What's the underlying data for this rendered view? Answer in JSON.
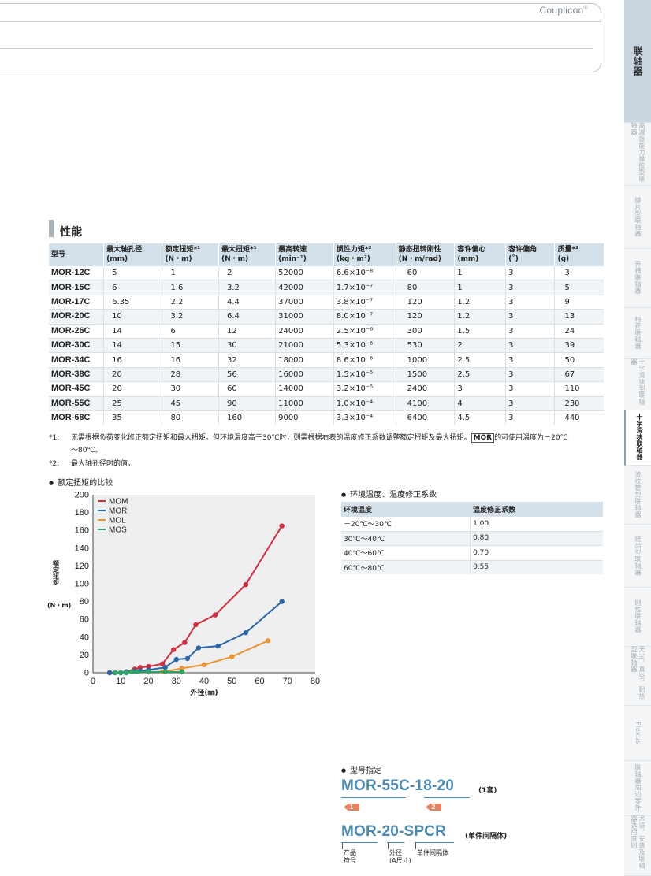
{
  "header": {
    "brand": "Couplicon",
    "brand_mark": "®"
  },
  "side_tabs": [
    {
      "label": "联轴器",
      "main": true
    },
    {
      "label": "高减振能力橡胶型联轴器"
    },
    {
      "label": "膜片型联轴器"
    },
    {
      "label": "开槽联轴器"
    },
    {
      "label": "梅花联轴器"
    },
    {
      "label": "十字滑块型联轴器"
    },
    {
      "label": "十字滑块联轴器",
      "active": true
    },
    {
      "label": "波纹管型联轴器"
    },
    {
      "label": "链齿型联轴器"
    },
    {
      "label": "刚性联轴器"
    },
    {
      "label": "无尘、真空、耐热型联轴器"
    },
    {
      "label": "Flexus"
    },
    {
      "label": "联轴器周边零件"
    },
    {
      "label": "术语、安装及联轴器选用原则"
    }
  ],
  "section_title": "性能",
  "spec_table": {
    "headers": [
      {
        "l1": "型号",
        "l2": ""
      },
      {
        "l1": "最大轴孔径",
        "l2": "(mm)"
      },
      {
        "l1": "额定扭矩*¹",
        "l2": "(N・m)"
      },
      {
        "l1": "最大扭矩*¹",
        "l2": "(N・m)"
      },
      {
        "l1": "最高转速",
        "l2": "(min⁻¹)"
      },
      {
        "l1": "惯性力矩*²",
        "l2": "(kg・m²)"
      },
      {
        "l1": "静态扭转刚性",
        "l2": "(N・m/rad)"
      },
      {
        "l1": "容许偏心",
        "l2": "(mm)"
      },
      {
        "l1": "容许偏角",
        "l2": "(˚)"
      },
      {
        "l1": "质量*²",
        "l2": "(g)"
      }
    ],
    "rows": [
      [
        "MOR-12C",
        "5",
        "1",
        "2",
        "52000",
        "6.6×10⁻⁸",
        "60",
        "1",
        "3",
        "3"
      ],
      [
        "MOR-15C",
        "6",
        "1.6",
        "3.2",
        "42000",
        "1.7×10⁻⁷",
        "80",
        "1",
        "3",
        "5"
      ],
      [
        "MOR-17C",
        "6.35",
        "2.2",
        "4.4",
        "37000",
        "3.8×10⁻⁷",
        "120",
        "1.2",
        "3",
        "9"
      ],
      [
        "MOR-20C",
        "10",
        "3.2",
        "6.4",
        "31000",
        "8.0×10⁻⁷",
        "120",
        "1.2",
        "3",
        "13"
      ],
      [
        "MOR-26C",
        "14",
        "6",
        "12",
        "24000",
        "2.5×10⁻⁶",
        "300",
        "1.5",
        "3",
        "24"
      ],
      [
        "MOR-30C",
        "14",
        "15",
        "30",
        "21000",
        "5.3×10⁻⁶",
        "530",
        "2",
        "3",
        "39"
      ],
      [
        "MOR-34C",
        "16",
        "16",
        "32",
        "18000",
        "8.6×10⁻⁶",
        "1000",
        "2.5",
        "3",
        "50"
      ],
      [
        "MOR-38C",
        "20",
        "28",
        "56",
        "16000",
        "1.5×10⁻⁵",
        "1500",
        "2.5",
        "3",
        "67"
      ],
      [
        "MOR-45C",
        "20",
        "30",
        "60",
        "14000",
        "3.2×10⁻⁵",
        "2400",
        "3",
        "3",
        "110"
      ],
      [
        "MOR-55C",
        "25",
        "45",
        "90",
        "11000",
        "1.0×10⁻⁴",
        "4100",
        "4",
        "3",
        "230"
      ],
      [
        "MOR-68C",
        "35",
        "80",
        "160",
        "9000",
        "3.3×10⁻⁴",
        "6400",
        "4.5",
        "3",
        "440"
      ]
    ]
  },
  "notes": {
    "n1_key": "*1:",
    "n1_text_a": "无需根据负荷变化修正额定扭矩和最大扭矩。但环境温度高于30℃时，则需根据右表的温度修正系数调整额定扭矩及最大扭矩。",
    "n1_tag": "MOR",
    "n1_text_b": "的可使用温度为－20℃",
    "n1_text_c": "～80℃。",
    "n2_key": "*2:",
    "n2_text": "最大轴孔径时的值。"
  },
  "chart_title": "额定扭矩的比较",
  "chart_data": {
    "type": "line",
    "xlabel": "外径(㎜)",
    "ylabel": "额定扭矩",
    "ylabel_unit": "(N・m)",
    "xlim": [
      0,
      80
    ],
    "ylim": [
      0,
      200
    ],
    "xticks": [
      0,
      10,
      20,
      30,
      40,
      50,
      60,
      70,
      80
    ],
    "yticks": [
      0,
      20,
      40,
      60,
      80,
      100,
      120,
      140,
      160,
      180,
      200
    ],
    "legend_position": "top-left",
    "series": [
      {
        "name": "MOM",
        "color": "#d42d3e",
        "points": [
          [
            6,
            0
          ],
          [
            10,
            0
          ],
          [
            12,
            1
          ],
          [
            15,
            4
          ],
          [
            17,
            6
          ],
          [
            20,
            7
          ],
          [
            25,
            10
          ],
          [
            29,
            26
          ],
          [
            33,
            34
          ],
          [
            37,
            54
          ],
          [
            44,
            65
          ],
          [
            55,
            99
          ],
          [
            68,
            165
          ]
        ]
      },
      {
        "name": "MOR",
        "color": "#2a67ab",
        "points": [
          [
            6,
            0
          ],
          [
            12,
            1
          ],
          [
            15,
            1.6
          ],
          [
            17,
            2.2
          ],
          [
            20,
            3.2
          ],
          [
            26,
            6
          ],
          [
            30,
            15
          ],
          [
            34,
            16
          ],
          [
            38,
            28
          ],
          [
            45,
            30
          ],
          [
            55,
            45
          ],
          [
            68,
            80
          ]
        ]
      },
      {
        "name": "MOL",
        "color": "#ec9434",
        "points": [
          [
            25,
            1
          ],
          [
            32,
            5
          ],
          [
            40,
            9
          ],
          [
            50,
            18
          ],
          [
            63,
            36
          ]
        ]
      },
      {
        "name": "MOS",
        "color": "#2ea564",
        "points": [
          [
            8,
            0
          ],
          [
            10,
            0
          ],
          [
            12,
            0
          ],
          [
            14,
            1
          ],
          [
            16,
            1
          ],
          [
            20,
            1
          ],
          [
            26,
            1
          ],
          [
            32,
            1
          ]
        ]
      }
    ]
  },
  "env_title": "环境温度、温度修正系数",
  "env_table": {
    "headers": [
      "环境温度",
      "温度修正系数"
    ],
    "rows": [
      [
        "－20℃～30℃",
        "1.00"
      ],
      [
        "30℃～40℃",
        "0.80"
      ],
      [
        "40℃～60℃",
        "0.70"
      ],
      [
        "60℃～80℃",
        "0.55"
      ]
    ]
  },
  "designation": {
    "title": "型号指定",
    "code1": "MOR-55C-18-20",
    "code1_note": "(1套)",
    "marker1": "1",
    "marker2": "2",
    "code2": "MOR-20-SPCR",
    "code2_note": "(单件间隔体)",
    "label_product_1": "产品",
    "label_product_2": "符号",
    "label_od_1": "外径",
    "label_od_2": "(A尺寸)",
    "label_spacer": "单件间隔体"
  }
}
